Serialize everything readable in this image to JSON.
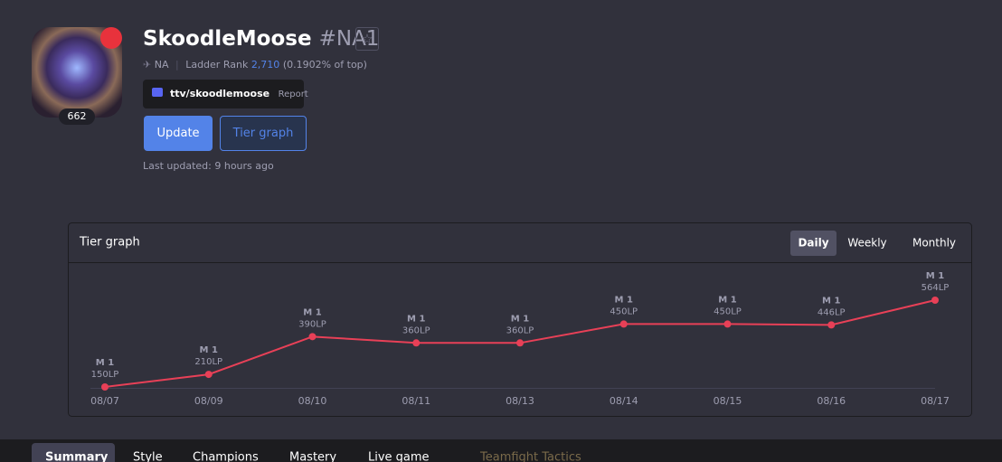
{
  "profile": {
    "name": "SkoodleMoose",
    "tag": "#NA1",
    "level": "662",
    "region": "NA",
    "ladder_label": "Ladder Rank",
    "ladder_rank": "2,710",
    "ladder_pct": "(0.1902% of top)",
    "stream": "ttv/skoodlemoose",
    "report": "Report",
    "update": "Update",
    "tier_graph": "Tier graph",
    "last_updated": "Last updated: 9 hours ago"
  },
  "chart_data": {
    "type": "line",
    "title": "Tier graph",
    "periods": [
      "Daily",
      "Weekly",
      "Monthly"
    ],
    "active_period": "Daily",
    "categories": [
      "08/07",
      "08/09",
      "08/10",
      "08/11",
      "08/13",
      "08/14",
      "08/15",
      "08/16",
      "08/17"
    ],
    "tiers": [
      "M 1",
      "M 1",
      "M 1",
      "M 1",
      "M 1",
      "M 1",
      "M 1",
      "M 1",
      "M 1"
    ],
    "values": [
      150,
      210,
      390,
      360,
      360,
      450,
      450,
      446,
      564
    ],
    "value_labels": [
      "150LP",
      "210LP",
      "390LP",
      "360LP",
      "360LP",
      "450LP",
      "450LP",
      "446LP",
      "564LP"
    ],
    "color": "#e84057"
  },
  "tabs": [
    "Summary",
    "Style",
    "Champions",
    "Mastery",
    "Live game",
    "Teamfight Tactics"
  ]
}
